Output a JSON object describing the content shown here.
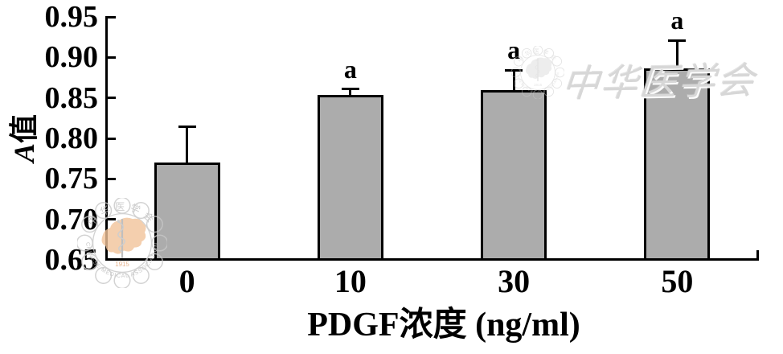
{
  "chart_data": {
    "type": "bar",
    "title": "",
    "xlabel": "PDGF浓度 (ng/ml)",
    "ylabel": "A值",
    "categories": [
      "0",
      "10",
      "30",
      "50"
    ],
    "values": [
      0.77,
      0.854,
      0.86,
      0.886
    ],
    "errors": [
      0.044,
      0.007,
      0.024,
      0.035
    ],
    "sig_labels": [
      "",
      "a",
      "a",
      "a"
    ],
    "ylim": [
      0.65,
      0.95
    ],
    "ytick_step": 0.05,
    "yticks": [
      "0.95",
      "0.90",
      "0.85",
      "0.80",
      "0.75",
      "0.70",
      "0.65"
    ],
    "bar_color": "#acacac",
    "bar_border_color": "#000000",
    "grid": false,
    "legend": null
  },
  "labels": {
    "ylabel_italic": "A",
    "ylabel_cjk": "值"
  },
  "watermarks": {
    "calligraphy": "中华医学会",
    "stamp": {
      "cn_arc": "中华医学会",
      "en_arc": "CHINESE MEDICAL ASSOCIATION",
      "year": "1915",
      "map_color": "#f2c49a",
      "ring_color": "#c8c8c8"
    }
  }
}
